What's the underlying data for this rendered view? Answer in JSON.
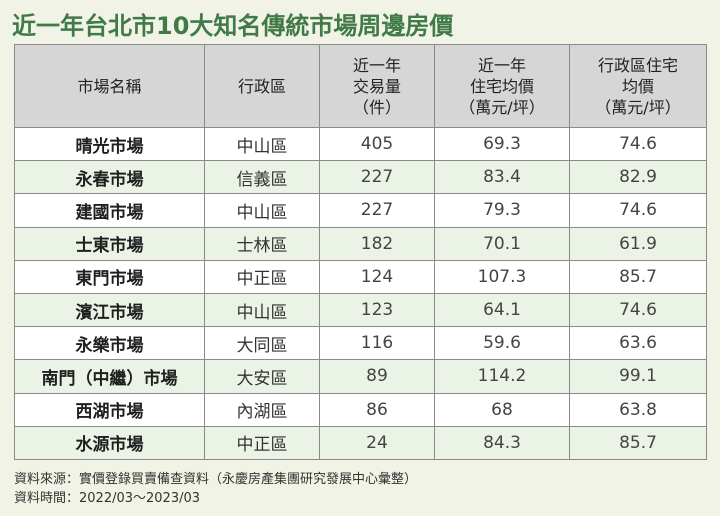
{
  "title": "近一年台北市10大知名傳統市場周邊房價",
  "table": {
    "headers": [
      [
        "市場名稱"
      ],
      [
        "行政區"
      ],
      [
        "近一年",
        "交易量",
        "（件）"
      ],
      [
        "近一年",
        "住宅均價",
        "（萬元/坪）"
      ],
      [
        "行政區住宅",
        "均價",
        "（萬元/坪）"
      ]
    ],
    "rows": [
      {
        "market": "晴光市場",
        "district": "中山區",
        "volume": "405",
        "avg_price": "69.3",
        "district_avg": "74.6"
      },
      {
        "market": "永春市場",
        "district": "信義區",
        "volume": "227",
        "avg_price": "83.4",
        "district_avg": "82.9"
      },
      {
        "market": "建國市場",
        "district": "中山區",
        "volume": "227",
        "avg_price": "79.3",
        "district_avg": "74.6"
      },
      {
        "market": "士東市場",
        "district": "士林區",
        "volume": "182",
        "avg_price": "70.1",
        "district_avg": "61.9"
      },
      {
        "market": "東門市場",
        "district": "中正區",
        "volume": "124",
        "avg_price": "107.3",
        "district_avg": "85.7"
      },
      {
        "market": "濱江市場",
        "district": "中山區",
        "volume": "123",
        "avg_price": "64.1",
        "district_avg": "74.6"
      },
      {
        "market": "永樂市場",
        "district": "大同區",
        "volume": "116",
        "avg_price": "59.6",
        "district_avg": "63.6"
      },
      {
        "market": "南門（中繼）市場",
        "district": "大安區",
        "volume": "89",
        "avg_price": "114.2",
        "district_avg": "99.1"
      },
      {
        "market": "西湖市場",
        "district": "內湖區",
        "volume": "86",
        "avg_price": "68",
        "district_avg": "63.8"
      },
      {
        "market": "水源市場",
        "district": "中正區",
        "volume": "24",
        "avg_price": "84.3",
        "district_avg": "85.7"
      }
    ]
  },
  "footer": {
    "source": "資料來源：實價登錄買賣備查資料（永慶房產集團研究發展中心彙整）",
    "period": "資料時間：2022/03～2023/03"
  },
  "colors": {
    "title": "#3f7a47",
    "header_bg": "#d6d6d6",
    "stripe_bg": "#eaf3e6",
    "page_bg": "#f1f3e6"
  }
}
